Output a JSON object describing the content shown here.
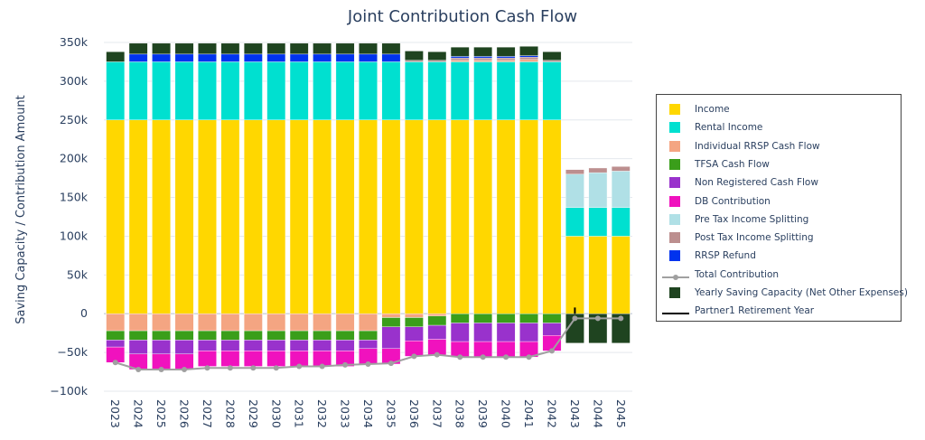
{
  "chart_data": {
    "type": "bar",
    "title": "Joint Contribution Cash Flow",
    "ylabel": "Saving Capacity / Contribution Amount",
    "xlabel": "",
    "ylim": [
      -100000,
      350000
    ],
    "ytick_values": [
      -100000,
      -50000,
      0,
      50000,
      100000,
      150000,
      200000,
      250000,
      300000,
      350000
    ],
    "ytick_labels": [
      "−100k",
      "−50k",
      "0",
      "50k",
      "100k",
      "150k",
      "200k",
      "250k",
      "300k",
      "350k"
    ],
    "categories": [
      "2023",
      "2024",
      "2025",
      "2026",
      "2027",
      "2028",
      "2029",
      "2030",
      "2031",
      "2032",
      "2033",
      "2034",
      "2035",
      "2036",
      "2037",
      "2038",
      "2039",
      "2040",
      "2041",
      "2042",
      "2043",
      "2044",
      "2045"
    ],
    "bar_series": [
      {
        "name": "Income",
        "color": "#FFD700",
        "values": [
          250000,
          250000,
          250000,
          250000,
          250000,
          250000,
          250000,
          250000,
          250000,
          250000,
          250000,
          250000,
          250000,
          250000,
          250000,
          250000,
          250000,
          250000,
          250000,
          250000,
          100000,
          100000,
          100000
        ]
      },
      {
        "name": "Rental Income",
        "color": "#00E0D0",
        "values": [
          75000,
          75000,
          75000,
          75000,
          75000,
          75000,
          75000,
          75000,
          75000,
          75000,
          75000,
          75000,
          75000,
          75000,
          75000,
          75000,
          75000,
          75000,
          75000,
          75000,
          37000,
          37000,
          37000
        ]
      },
      {
        "name": "Individual RRSP Cash Flow",
        "color": "#F4A582",
        "values": [
          -22000,
          -22000,
          -22000,
          -22000,
          -22000,
          -22000,
          -22000,
          -22000,
          -22000,
          -22000,
          -22000,
          -22000,
          -5000,
          -5000,
          -3000,
          2000,
          2000,
          2000,
          3000,
          0,
          0,
          0,
          0
        ]
      },
      {
        "name": "TFSA Cash Flow",
        "color": "#3A9E1A",
        "values": [
          -12000,
          -12000,
          -12000,
          -12000,
          -12000,
          -12000,
          -12000,
          -12000,
          -12000,
          -12000,
          -12000,
          -12000,
          -12000,
          -12000,
          -12000,
          -12000,
          -12000,
          -12000,
          -12000,
          -12000,
          0,
          0,
          0
        ]
      },
      {
        "name": "Non Registered Cash Flow",
        "color": "#9932CC",
        "values": [
          -9000,
          -18000,
          -18000,
          -18000,
          -14000,
          -14000,
          -14000,
          -14000,
          -14000,
          -14000,
          -14000,
          -11000,
          -28000,
          -18000,
          -18000,
          -24000,
          -24000,
          -24000,
          -24000,
          -16000,
          0,
          0,
          0
        ]
      },
      {
        "name": "DB Contribution",
        "color": "#F012BE",
        "values": [
          -20000,
          -20000,
          -20000,
          -20000,
          -20000,
          -20000,
          -20000,
          -20000,
          -20000,
          -20000,
          -20000,
          -20000,
          -20000,
          -20000,
          -20000,
          -20000,
          -20000,
          -20000,
          -20000,
          -20000,
          0,
          0,
          0
        ]
      },
      {
        "name": "Pre Tax Income Splitting",
        "color": "#B0E0E6",
        "values": [
          0,
          0,
          0,
          0,
          0,
          0,
          0,
          0,
          0,
          0,
          0,
          0,
          0,
          0,
          0,
          0,
          0,
          0,
          0,
          0,
          43000,
          45000,
          47000
        ]
      },
      {
        "name": "Post Tax Income Splitting",
        "color": "#BC8F8F",
        "values": [
          0,
          0,
          0,
          0,
          0,
          0,
          0,
          0,
          0,
          0,
          0,
          0,
          0,
          2000,
          2000,
          3000,
          3000,
          3000,
          3000,
          2000,
          6000,
          6000,
          6000
        ]
      },
      {
        "name": "RRSP Refund",
        "color": "#0033EE",
        "values": [
          0,
          10000,
          10000,
          10000,
          10000,
          10000,
          10000,
          10000,
          10000,
          10000,
          10000,
          10000,
          10000,
          0,
          0,
          2000,
          2000,
          2000,
          2000,
          0,
          0,
          0,
          0
        ]
      },
      {
        "name": "Yearly Saving Capacity (Net Other Expenses)",
        "color": "#1F4420",
        "values": [
          13000,
          14000,
          14000,
          14000,
          14000,
          14000,
          14000,
          14000,
          14000,
          14000,
          14000,
          14000,
          14000,
          12000,
          11000,
          12000,
          12000,
          12000,
          12000,
          11000,
          -38000,
          -38000,
          -38000
        ]
      }
    ],
    "line_series": [
      {
        "name": "Total Contribution",
        "color": "#A0A0A0",
        "values": [
          -63000,
          -72000,
          -72000,
          -72000,
          -70000,
          -70000,
          -70000,
          -70000,
          -68000,
          -68000,
          -66000,
          -65000,
          -64000,
          -55000,
          -53000,
          -56000,
          -56000,
          -56000,
          -56000,
          -48000,
          -6000,
          -6000,
          -6000
        ]
      }
    ],
    "marker_series": [
      {
        "name": "Partner1 Retirement Year",
        "color": "#000000",
        "category": "2043",
        "from": 0,
        "to": 8000
      }
    ],
    "legend_position": "right",
    "grid": true
  }
}
